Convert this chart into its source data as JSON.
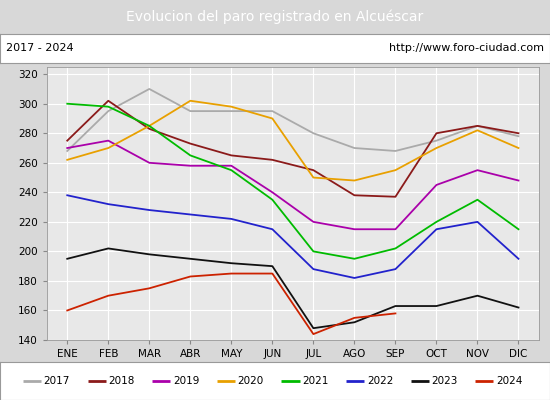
{
  "title": "Evolucion del paro registrado en Alcuéscar",
  "subtitle_left": "2017 - 2024",
  "subtitle_right": "http://www.foro-ciudad.com",
  "title_bg": "#5b8dd9",
  "months": [
    "ENE",
    "FEB",
    "MAR",
    "ABR",
    "MAY",
    "JUN",
    "JUL",
    "AGO",
    "SEP",
    "OCT",
    "NOV",
    "DIC"
  ],
  "ylim": [
    140,
    325
  ],
  "yticks": [
    140,
    160,
    180,
    200,
    220,
    240,
    260,
    280,
    300,
    320
  ],
  "series": {
    "2017": {
      "color": "#aaaaaa",
      "data": [
        268,
        295,
        310,
        295,
        295,
        295,
        280,
        270,
        268,
        275,
        285,
        278
      ]
    },
    "2018": {
      "color": "#8b1a1a",
      "data": [
        275,
        302,
        283,
        273,
        265,
        262,
        255,
        238,
        237,
        280,
        285,
        280
      ]
    },
    "2019": {
      "color": "#aa00aa",
      "data": [
        270,
        275,
        260,
        258,
        258,
        240,
        220,
        215,
        215,
        245,
        255,
        248
      ]
    },
    "2020": {
      "color": "#e8a000",
      "data": [
        262,
        270,
        285,
        302,
        298,
        290,
        250,
        248,
        255,
        270,
        282,
        270
      ]
    },
    "2021": {
      "color": "#00bb00",
      "data": [
        300,
        298,
        285,
        265,
        255,
        235,
        200,
        195,
        202,
        220,
        235,
        215
      ]
    },
    "2022": {
      "color": "#2222cc",
      "data": [
        238,
        232,
        228,
        225,
        222,
        215,
        188,
        182,
        188,
        215,
        220,
        195
      ]
    },
    "2023": {
      "color": "#111111",
      "data": [
        195,
        202,
        198,
        195,
        192,
        190,
        148,
        152,
        163,
        163,
        170,
        162
      ]
    },
    "2024": {
      "color": "#cc2200",
      "data": [
        160,
        170,
        175,
        183,
        185,
        185,
        144,
        155,
        158,
        null,
        null,
        null
      ]
    }
  }
}
